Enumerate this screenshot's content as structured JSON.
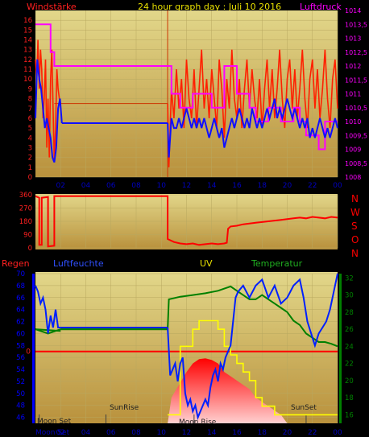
{
  "header": {
    "left": "Windstärke",
    "center": "24 hour graph day : Juli 10 2016",
    "right": "Luftdruck"
  },
  "colors": {
    "wind_gust": "#ff2000",
    "wind_avg": "#1010ff",
    "pressure": "#ff00ff",
    "direction": "#ff0000",
    "humidity": "#0020ff",
    "temperature": "#008000",
    "uv": "#ffff00",
    "solar": "#ff0000",
    "rain": "#ff0000",
    "left_axis_text": "#ff2020",
    "right_axis_text": "#ff00ff",
    "time_axis_text": "#0000c0",
    "humidity_axis_text": "#0000ff",
    "temperature_axis_text": "#008000",
    "background_top": "#e2d78a",
    "background_bottom": "#b9913c"
  },
  "compass": [
    "N",
    "W",
    "S",
    "O",
    "N"
  ],
  "bottom_labels": {
    "rain": "Regen",
    "humidity": "Luftfeuchte",
    "uv": "UV",
    "temperature": "Temperatur",
    "moon_set_top": "Moon Set",
    "moon_set_axis": "Moon Set",
    "sunrise": "SunRise",
    "moon_rise": "Moon Rise",
    "sunset": "SunSet"
  },
  "chart_data": [
    {
      "type": "line",
      "id": "wind",
      "xlabel": "",
      "x_ticks": [
        "02",
        "04",
        "06",
        "08",
        "10",
        "12",
        "14",
        "16",
        "18",
        "20",
        "22",
        "00"
      ],
      "x_tick_hours": [
        2,
        4,
        6,
        8,
        10,
        12,
        14,
        16,
        18,
        20,
        22,
        24
      ],
      "xlim": [
        0,
        24
      ],
      "ylabel": "Windstärke",
      "ylim": [
        0,
        17
      ],
      "y_ticks": [
        0,
        1,
        2,
        3,
        4,
        5,
        6,
        7,
        8,
        9,
        10,
        11,
        12,
        13,
        14,
        15,
        16
      ],
      "y2label": "Luftdruck",
      "y2lim": [
        1008,
        1014
      ],
      "y2_ticks": [
        "1008",
        "1008,5",
        "1009",
        "1009,5",
        "1010",
        "1010,5",
        "1011",
        "1011,5",
        "1012",
        "1012,5",
        "1013",
        "1013,5",
        "1014"
      ],
      "series": [
        {
          "name": "gust",
          "x": [
            0.0,
            0.1,
            0.2,
            0.3,
            0.4,
            0.5,
            0.6,
            0.7,
            0.8,
            0.9,
            1.0,
            1.1,
            1.2,
            1.3,
            1.4,
            1.5,
            1.6,
            1.7,
            1.8,
            1.9,
            2.0,
            10.5,
            10.6,
            10.7,
            10.8,
            11.0,
            11.2,
            11.4,
            11.6,
            11.8,
            12.0,
            12.2,
            12.4,
            12.6,
            12.8,
            13.0,
            13.2,
            13.4,
            13.6,
            13.8,
            14.0,
            14.2,
            14.4,
            14.6,
            14.8,
            15.0,
            15.2,
            15.4,
            15.6,
            15.8,
            16.0,
            16.2,
            16.4,
            16.6,
            16.8,
            17.0,
            17.2,
            17.4,
            17.6,
            17.8,
            18.0,
            18.2,
            18.4,
            18.6,
            18.8,
            19.0,
            19.2,
            19.4,
            19.6,
            19.8,
            20.0,
            20.2,
            20.4,
            20.6,
            20.8,
            21.0,
            21.2,
            21.4,
            21.6,
            21.8,
            22.0,
            22.2,
            22.4,
            22.6,
            22.8,
            23.0,
            23.2,
            23.4,
            23.6,
            23.8,
            24.0
          ],
          "y": [
            12,
            10,
            14,
            9,
            13,
            11,
            6,
            8,
            12,
            3,
            8,
            2,
            10,
            13,
            7,
            1.5,
            5,
            11,
            9,
            8,
            7.5,
            7.5,
            1,
            5,
            9,
            6,
            11,
            7,
            10,
            5,
            12,
            8,
            6,
            11,
            5,
            9,
            13,
            7,
            10,
            6,
            11,
            8,
            5,
            12,
            9,
            4,
            10,
            7,
            13,
            8,
            6,
            10,
            5,
            9,
            12,
            7,
            11,
            8,
            6,
            10,
            5,
            9,
            12,
            7,
            11,
            6,
            9,
            13,
            8,
            5,
            10,
            12,
            7,
            11,
            6,
            9,
            13,
            8,
            5,
            10,
            12,
            7,
            11,
            6,
            9,
            13,
            8,
            5,
            10,
            12,
            7
          ]
        },
        {
          "name": "average",
          "x": [
            0.0,
            0.15,
            0.3,
            0.45,
            0.6,
            0.75,
            0.9,
            1.05,
            1.2,
            1.35,
            1.5,
            1.65,
            1.8,
            1.95,
            2.1,
            10.5,
            10.6,
            10.7,
            10.8,
            11.0,
            11.2,
            11.4,
            11.6,
            11.8,
            12.0,
            12.2,
            12.4,
            12.6,
            12.8,
            13.0,
            13.2,
            13.4,
            13.6,
            13.8,
            14.0,
            14.2,
            14.4,
            14.6,
            14.8,
            15.0,
            15.2,
            15.4,
            15.6,
            15.8,
            16.0,
            16.2,
            16.4,
            16.6,
            16.8,
            17.0,
            17.2,
            17.4,
            17.6,
            17.8,
            18.0,
            18.2,
            18.4,
            18.6,
            18.8,
            19.0,
            19.2,
            19.4,
            19.6,
            19.8,
            20.0,
            20.2,
            20.4,
            20.6,
            20.8,
            21.0,
            21.2,
            21.4,
            21.6,
            21.8,
            22.0,
            22.2,
            22.4,
            22.6,
            22.8,
            23.0,
            23.2,
            23.4,
            23.6,
            23.8,
            24.0
          ],
          "y": [
            6,
            12,
            10,
            9,
            7,
            5,
            6,
            5,
            4,
            2,
            1.5,
            3,
            7,
            8,
            5.5,
            5.5,
            2,
            4,
            6,
            5,
            5,
            6,
            5,
            6,
            7,
            6,
            5,
            6,
            5,
            6,
            5,
            6,
            5,
            4,
            5,
            6,
            5,
            4,
            5,
            3,
            4,
            5,
            6,
            5,
            6,
            7,
            6,
            5,
            6,
            5,
            7,
            6,
            5,
            6,
            5,
            6,
            7,
            6,
            7,
            8,
            6,
            7,
            6,
            7,
            8,
            7,
            6,
            7,
            6,
            5,
            6,
            5,
            6,
            4,
            5,
            4,
            5,
            6,
            5,
            4,
            5,
            4,
            5,
            6,
            5
          ]
        },
        {
          "name": "pressure",
          "axis": "y2",
          "x": [
            0.0,
            1.2,
            1.2,
            1.5,
            1.5,
            10.8,
            10.8,
            11.5,
            11.5,
            12.5,
            12.5,
            14.0,
            14.0,
            15.0,
            15.0,
            16.0,
            16.0,
            17.0,
            17.0,
            17.5,
            17.5,
            18.5,
            18.5,
            19.5,
            19.5,
            20.5,
            20.5,
            21.0,
            21.0,
            21.5,
            21.5,
            22.5,
            22.5,
            23.0,
            23.0,
            24.0
          ],
          "y": [
            1013.5,
            1013.5,
            1012.5,
            1012.5,
            1012,
            1012,
            1011,
            1011,
            1010.5,
            1010.5,
            1011,
            1011,
            1010.5,
            1010.5,
            1012,
            1012,
            1011,
            1011,
            1010.5,
            1010.5,
            1010,
            1010,
            1010.5,
            1010.5,
            1010,
            1010,
            1010.5,
            1010.5,
            1010,
            1010,
            1009.5,
            1009.5,
            1009,
            1009,
            1010,
            1010
          ]
        }
      ]
    },
    {
      "type": "line",
      "id": "direction",
      "xlim": [
        0,
        24
      ],
      "ylim": [
        0,
        360
      ],
      "y_ticks": [
        0,
        90,
        180,
        270,
        360
      ],
      "series": [
        {
          "name": "direction",
          "x": [
            0.0,
            0.3,
            0.3,
            0.5,
            0.5,
            1.0,
            1.0,
            1.5,
            1.5,
            10.5,
            10.5,
            11.0,
            11.5,
            12.0,
            12.5,
            13.0,
            13.5,
            14.0,
            14.5,
            15.0,
            15.2,
            15.3,
            15.5,
            16.0,
            16.5,
            17.0,
            17.5,
            18.0,
            18.5,
            19.0,
            19.5,
            20.0,
            20.5,
            21.0,
            21.5,
            22.0,
            22.5,
            23.0,
            23.5,
            24.0
          ],
          "y": [
            350,
            340,
            20,
            20,
            340,
            345,
            10,
            15,
            350,
            350,
            60,
            40,
            30,
            25,
            30,
            20,
            25,
            30,
            25,
            30,
            35,
            130,
            145,
            150,
            160,
            165,
            170,
            175,
            180,
            185,
            190,
            195,
            200,
            205,
            200,
            210,
            205,
            200,
            210,
            205
          ]
        }
      ]
    },
    {
      "type": "line",
      "id": "climate",
      "xlim": [
        0,
        24
      ],
      "ylim": [
        45,
        70
      ],
      "y_ticks": [
        46,
        48,
        50,
        52,
        54,
        56,
        58,
        60,
        62,
        64,
        66,
        68,
        70
      ],
      "y2lim": [
        15,
        32.5
      ],
      "y2_ticks": [
        16,
        18,
        20,
        22,
        24,
        26,
        28,
        30,
        32
      ],
      "rain_zero_label": "0",
      "series": [
        {
          "name": "humidity",
          "x": [
            0.0,
            0.2,
            0.4,
            0.6,
            0.8,
            1.0,
            1.2,
            1.4,
            1.6,
            1.8,
            2.0,
            10.5,
            10.7,
            10.9,
            11.1,
            11.3,
            11.5,
            11.7,
            11.9,
            12.1,
            12.3,
            12.5,
            12.7,
            12.9,
            13.1,
            13.3,
            13.5,
            13.7,
            13.9,
            14.1,
            14.3,
            14.5,
            14.7,
            14.9,
            15.1,
            15.3,
            15.5,
            15.7,
            15.9,
            16.1,
            16.5,
            17.0,
            17.5,
            18.0,
            18.5,
            19.0,
            19.5,
            20.0,
            20.5,
            21.0,
            21.3,
            21.6,
            21.9,
            22.2,
            22.5,
            22.8,
            23.1,
            23.4,
            23.7,
            24.0
          ],
          "y": [
            68,
            67,
            65,
            66,
            64,
            60,
            63,
            61,
            64,
            61,
            61,
            61,
            53,
            54,
            55,
            52,
            55,
            56,
            50,
            48,
            49,
            47,
            48,
            46,
            47,
            48,
            49,
            48,
            51,
            53,
            54,
            52,
            55,
            54,
            56,
            57,
            58,
            62,
            66,
            67,
            68,
            66,
            68,
            69,
            66,
            68,
            65,
            66,
            68,
            69,
            66,
            62,
            60,
            58,
            60,
            61,
            62,
            64,
            67,
            70
          ]
        },
        {
          "name": "temperature",
          "axis": "y2",
          "x": [
            0.0,
            1.0,
            2.0,
            10.5,
            10.6,
            11.5,
            12.5,
            13.5,
            14.5,
            15.5,
            16.0,
            17.0,
            17.5,
            18.0,
            18.5,
            19.0,
            19.5,
            20.0,
            20.5,
            21.0,
            21.5,
            22.0,
            22.5,
            23.0,
            23.5,
            24.0
          ],
          "y": [
            26,
            25.5,
            26,
            26,
            29.5,
            29.8,
            30,
            30.2,
            30.5,
            31,
            30.5,
            29.5,
            29.5,
            30,
            29.5,
            29,
            28.5,
            28,
            27,
            26.5,
            25.5,
            25,
            24.5,
            24.5,
            24.3,
            24
          ],
          "style": "step"
        },
        {
          "name": "uv",
          "axis": "y2",
          "x": [
            10.5,
            11.5,
            11.5,
            12.5,
            12.5,
            13.0,
            13.0,
            14.5,
            14.5,
            15.0,
            15.0,
            15.5,
            15.5,
            16.0,
            16.0,
            16.5,
            16.5,
            17.0,
            17.0,
            17.5,
            17.5,
            18.0,
            18.0,
            19.0,
            19.0,
            24.0
          ],
          "y": [
            16,
            16,
            24,
            24,
            26,
            26,
            27,
            27,
            26,
            26,
            24,
            24,
            23,
            23,
            22,
            22,
            21,
            21,
            20,
            20,
            18,
            18,
            17,
            17,
            16,
            16
          ]
        },
        {
          "name": "solar",
          "axis": "y2",
          "x": [
            10.5,
            10.8,
            11.2,
            11.6,
            12.0,
            12.5,
            13.0,
            13.5,
            14.0,
            14.5,
            15.0,
            15.5,
            16.0,
            16.5,
            17.0,
            17.5,
            18.0,
            18.5,
            19.0,
            19.5,
            20.0
          ],
          "y": [
            15,
            18,
            19,
            20,
            21,
            22,
            22.5,
            22.6,
            22.4,
            22,
            21,
            20.5,
            20,
            19.5,
            19,
            18,
            17.5,
            17,
            16.5,
            16,
            15
          ]
        },
        {
          "name": "rain",
          "x": [
            0,
            24
          ],
          "y": [
            57,
            57
          ]
        }
      ],
      "events": [
        {
          "label": "SunRise",
          "hour": 5.6
        },
        {
          "label": "SunSet",
          "hour": 21.5
        },
        {
          "label": "Moon Rise",
          "hour": 12.6
        },
        {
          "label": "Moon Set",
          "hour": 0.3
        }
      ]
    }
  ]
}
